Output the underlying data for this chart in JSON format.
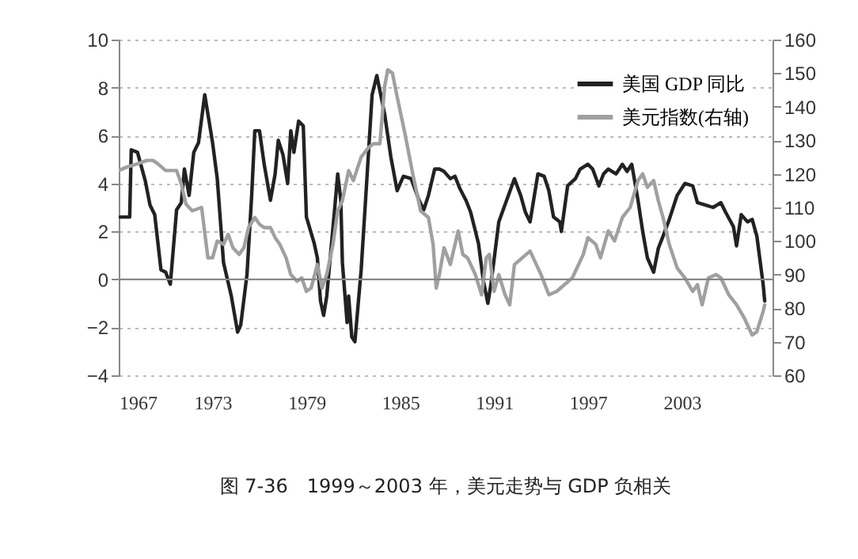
{
  "chart_data": {
    "type": "line",
    "annotations": [
      "图 7-36　1999～2003 年，美元走势与 GDP 负相关"
    ],
    "xlim": [
      1967,
      2008.8
    ],
    "xticks": [
      1967,
      1973,
      1979,
      1985,
      1991,
      1997,
      2003
    ],
    "ylim": [
      -4,
      10
    ],
    "yticks": [
      -4,
      -2,
      0,
      2,
      4,
      6,
      8,
      10
    ],
    "y2lim": [
      60,
      160
    ],
    "y2ticks": [
      60,
      70,
      80,
      90,
      100,
      110,
      120,
      130,
      140,
      150,
      160
    ],
    "grid": "y",
    "legend": "top right",
    "ref_lines": [
      {
        "axis": "y",
        "value": 0,
        "color": "#888888"
      }
    ],
    "series": [
      {
        "name": "美国 GDP 同比",
        "color": "#222222",
        "x": [
          1967.1,
          1967.7,
          1967.8,
          1968.2,
          1968.7,
          1969.0,
          1969.3,
          1969.7,
          1970.0,
          1970.3,
          1970.7,
          1971.0,
          1971.2,
          1971.5,
          1971.8,
          1972.1,
          1972.5,
          1973.0,
          1973.3,
          1973.7,
          1974.2,
          1974.6,
          1974.8,
          1975.2,
          1975.5,
          1975.7,
          1976.0,
          1976.3,
          1976.7,
          1977.0,
          1977.2,
          1977.5,
          1977.8,
          1978.0,
          1978.2,
          1978.5,
          1978.8,
          1979.0,
          1979.5,
          1979.7,
          1979.9,
          1980.1,
          1980.3,
          1980.8,
          1981.0,
          1981.2,
          1981.3,
          1981.6,
          1981.7,
          1981.9,
          1982.1,
          1982.5,
          1982.8,
          1983.2,
          1983.5,
          1984.0,
          1984.4,
          1984.8,
          1985.2,
          1985.7,
          1986.2,
          1986.5,
          1986.8,
          1987.2,
          1987.5,
          1987.8,
          1988.2,
          1988.5,
          1988.8,
          1989.2,
          1989.5,
          1990.0,
          1990.3,
          1990.6,
          1990.8,
          1991.3,
          1991.8,
          1992.3,
          1992.7,
          1993.0,
          1993.3,
          1993.8,
          1994.2,
          1994.5,
          1994.8,
          1995.2,
          1995.3,
          1995.7,
          1996.2,
          1996.5,
          1997.0,
          1997.3,
          1997.7,
          1998.0,
          1998.3,
          1998.8,
          1999.2,
          1999.5,
          1999.8,
          2000.2,
          2000.5,
          2000.8,
          2001.2,
          2001.5,
          2001.8,
          2002.2,
          2002.7,
          2003.2,
          2003.7,
          2004.0,
          2004.5,
          2005.0,
          2005.5,
          2005.8,
          2006.3,
          2006.5,
          2006.8,
          2007.2,
          2007.5,
          2007.8,
          2008.2,
          2008.3
        ],
        "values": [
          2.6,
          2.6,
          5.4,
          5.3,
          4.1,
          3.1,
          2.7,
          0.4,
          0.3,
          -0.2,
          2.9,
          3.2,
          4.6,
          3.5,
          5.3,
          5.7,
          7.7,
          5.7,
          4.2,
          0.7,
          -0.7,
          -2.2,
          -1.9,
          0.2,
          3.5,
          6.2,
          6.2,
          4.8,
          3.3,
          4.4,
          5.8,
          5.2,
          4.0,
          6.2,
          5.3,
          6.6,
          6.4,
          2.6,
          1.5,
          0.9,
          -0.9,
          -1.5,
          -0.7,
          2.9,
          4.4,
          3.3,
          0.7,
          -1.8,
          -0.7,
          -2.4,
          -2.6,
          0.4,
          3.5,
          7.7,
          8.5,
          6.9,
          5.1,
          3.7,
          4.3,
          4.2,
          3.3,
          2.9,
          3.5,
          4.6,
          4.6,
          4.5,
          4.2,
          4.3,
          3.8,
          3.3,
          2.8,
          1.5,
          0.0,
          -1.0,
          -0.2,
          2.4,
          3.3,
          4.2,
          3.5,
          2.8,
          2.4,
          4.4,
          4.3,
          3.7,
          2.6,
          2.4,
          2.0,
          3.9,
          4.2,
          4.6,
          4.8,
          4.6,
          3.9,
          4.4,
          4.6,
          4.4,
          4.8,
          4.5,
          4.8,
          3.3,
          2.0,
          0.9,
          0.3,
          1.3,
          1.8,
          2.5,
          3.5,
          4.0,
          3.9,
          3.2,
          3.1,
          3.0,
          3.2,
          2.8,
          2.2,
          1.4,
          2.7,
          2.4,
          2.5,
          1.8,
          -0.2,
          -0.9
        ]
      },
      {
        "name": "美元指数(右轴)",
        "color": "#a0a0a0",
        "axis": "y2",
        "x": [
          1967.0,
          1967.5,
          1968.2,
          1968.8,
          1969.2,
          1969.5,
          1970.0,
          1970.7,
          1971.0,
          1971.3,
          1971.7,
          1972.3,
          1972.7,
          1973.0,
          1973.3,
          1973.7,
          1974.0,
          1974.3,
          1974.7,
          1975.0,
          1975.3,
          1975.7,
          1976.0,
          1976.3,
          1976.7,
          1977.0,
          1977.3,
          1977.7,
          1978.0,
          1978.4,
          1978.7,
          1979.0,
          1979.3,
          1979.7,
          1980.0,
          1980.3,
          1980.7,
          1981.0,
          1981.3,
          1981.7,
          1982.0,
          1982.5,
          1983.0,
          1983.3,
          1983.7,
          1984.0,
          1984.2,
          1984.5,
          1984.8,
          1985.3,
          1985.8,
          1986.3,
          1986.8,
          1987.1,
          1987.3,
          1987.5,
          1987.8,
          1988.2,
          1988.7,
          1989.0,
          1989.3,
          1989.8,
          1990.2,
          1990.5,
          1990.7,
          1991.0,
          1991.3,
          1991.7,
          1992.0,
          1992.3,
          1992.8,
          1993.3,
          1993.7,
          1994.0,
          1994.5,
          1995.0,
          1995.5,
          1996.0,
          1996.7,
          1997.0,
          1997.5,
          1997.8,
          1998.3,
          1998.7,
          1999.2,
          1999.7,
          2000.2,
          2000.5,
          2000.8,
          2001.2,
          2001.5,
          2001.8,
          2002.2,
          2002.7,
          2003.2,
          2003.7,
          2004.0,
          2004.3,
          2004.7,
          2005.2,
          2005.5,
          2006.0,
          2006.5,
          2007.0,
          2007.5,
          2007.8,
          2008.2,
          2008.3
        ],
        "values": [
          121,
          122,
          123,
          124,
          124,
          123,
          121,
          121,
          117,
          111,
          109,
          110,
          95,
          95,
          100,
          99,
          102,
          98,
          96,
          98,
          104,
          107,
          105,
          104,
          104,
          101,
          99,
          95,
          90,
          88,
          89,
          85,
          86,
          93,
          86,
          90,
          99,
          109,
          112,
          121,
          118,
          125,
          128,
          129,
          129,
          146,
          151,
          150,
          143,
          132,
          120,
          109,
          107,
          99,
          86,
          90,
          98,
          93,
          103,
          96,
          95,
          90,
          84,
          95,
          96,
          85,
          90,
          84,
          81,
          93,
          95,
          97,
          93,
          90,
          84,
          85,
          87,
          89,
          96,
          101,
          99,
          95,
          103,
          100,
          107,
          110,
          118,
          120,
          116,
          118,
          112,
          107,
          99,
          92,
          89,
          85,
          87,
          81,
          89,
          90,
          89,
          84,
          81,
          77,
          72,
          73,
          79,
          81
        ]
      }
    ]
  }
}
